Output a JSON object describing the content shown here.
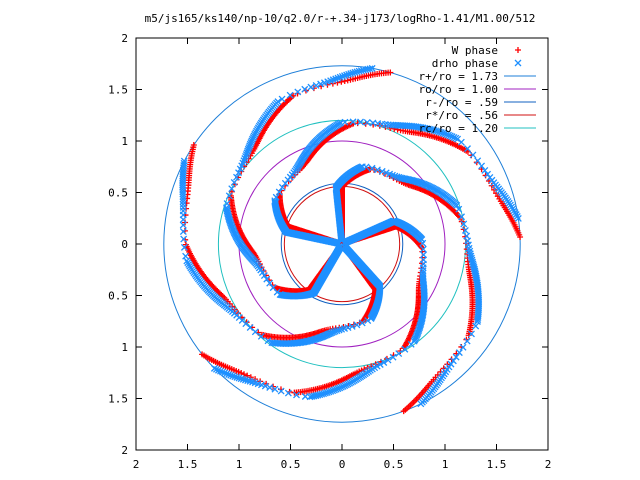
{
  "chart_data": {
    "type": "scatter",
    "title": "m5/js165/ks140/np-10/q2.0/r-+.34-j173/logRho-1.41/M1.00/512",
    "xlim": [
      -2,
      2
    ],
    "ylim": [
      -2,
      2
    ],
    "x_ticks": [
      -2,
      -1.5,
      -1,
      -0.5,
      0,
      0.5,
      1,
      1.5,
      2
    ],
    "y_ticks": [
      2,
      1.5,
      1,
      0.5,
      0,
      -0.5,
      -1,
      -1.5,
      -2
    ],
    "x_tick_labels": [
      "2",
      "1.5",
      "1",
      "0.5",
      "0",
      "0.5",
      "1",
      "1.5",
      "2"
    ],
    "y_tick_labels": [
      "2",
      "1.5",
      "1",
      "0.5",
      "0",
      "0.5",
      "1",
      "1.5",
      "2"
    ],
    "grid": false,
    "legend_position": "top-right",
    "series": [
      {
        "name": "W phase",
        "marker": "+",
        "color": "#ff0000",
        "arms": 5,
        "rotation_deg": 90
      },
      {
        "name": "drho phase",
        "marker": "x",
        "color": "#1e90ff",
        "arms": 5,
        "rotation_deg": 96
      }
    ],
    "circles": [
      {
        "label": "r+/ro = 1.73",
        "r": 1.73,
        "color": "#1e7fd8"
      },
      {
        "label": "ro/ro = 1.00",
        "r": 1.0,
        "color": "#a020c0"
      },
      {
        "label": "r-/ro = .59",
        "r": 0.59,
        "color": "#1060c0"
      },
      {
        "label": "r*/ro = .56",
        "r": 0.56,
        "color": "#d01010"
      },
      {
        "label": "rc/ro = 1.20",
        "r": 1.2,
        "color": "#20c0c0"
      }
    ]
  }
}
